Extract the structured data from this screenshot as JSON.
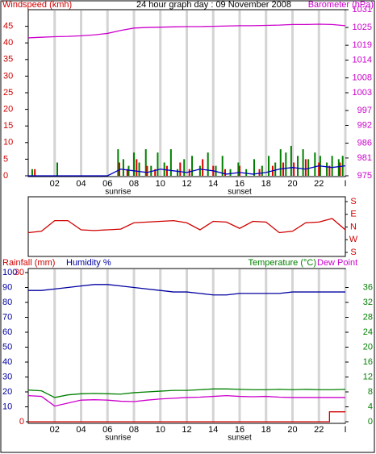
{
  "chart_data": [
    {
      "type": "bar",
      "title": "24 hour graph day : 09 November 2008",
      "ylabel": "Windspeed (kmh)",
      "y2label": "Barometer (hPa)",
      "xlim": [
        0,
        24
      ],
      "xticks": [
        {
          "value": 2,
          "label": "02"
        },
        {
          "value": 4,
          "label": "04"
        },
        {
          "value": 6,
          "label": "06"
        },
        {
          "value": 8,
          "label": "08"
        },
        10,
        12,
        14,
        16,
        18,
        20,
        22,
        {
          "value": 24,
          "label": "I"
        }
      ],
      "ylim": [
        0,
        50
      ],
      "yticks": [
        0,
        5,
        10,
        15,
        20,
        25,
        30,
        35,
        40,
        45
      ],
      "y2lim": [
        975,
        1031
      ],
      "y2ticks": [
        975,
        981,
        986,
        992,
        997,
        1003,
        1008,
        1014,
        1019,
        1025,
        1031
      ],
      "annotations": [
        {
          "text": "sunrise",
          "x": 6.8
        },
        {
          "text": "sunset",
          "x": 16
        }
      ],
      "x": [
        0,
        1,
        2,
        3,
        4,
        5,
        6,
        7,
        8,
        9,
        10,
        11,
        12,
        13,
        14,
        15,
        16,
        17,
        18,
        19,
        20,
        21,
        22,
        23,
        24
      ],
      "series": [
        {
          "type": "bar",
          "color": "#008000",
          "x": [
            0.3,
            2.2,
            6.8,
            7.2,
            7.6,
            8.0,
            8.4,
            8.9,
            9.3,
            9.8,
            10.3,
            10.8,
            11.3,
            11.8,
            12.4,
            13.0,
            13.6,
            14.2,
            14.7,
            15.3,
            15.9,
            16.5,
            17.1,
            17.7,
            18.2,
            18.7,
            19.1,
            19.5,
            19.9,
            20.4,
            20.8,
            21.2,
            21.7,
            22.1,
            22.6,
            23.0,
            23.5,
            23.8
          ],
          "values": [
            2,
            4,
            8,
            5,
            3,
            7,
            4,
            8,
            3,
            7,
            4,
            8,
            2,
            5,
            6,
            3,
            7,
            3,
            6,
            2,
            4,
            2,
            5,
            3,
            6,
            4,
            8,
            7,
            9,
            6,
            8,
            5,
            7,
            6,
            4,
            6,
            5,
            6
          ]
        },
        {
          "type": "bar",
          "color": "#e00000",
          "x": [
            0.5,
            6.9,
            7.5,
            8.2,
            9.0,
            9.6,
            10.5,
            11.5,
            12.2,
            13.2,
            14.0,
            14.9,
            16.0,
            17.5,
            18.5,
            19.3,
            20.1,
            21.0,
            22.0,
            22.8,
            23.6
          ],
          "values": [
            2,
            4,
            2,
            5,
            3,
            2,
            3,
            4,
            2,
            5,
            3,
            2,
            3,
            2,
            3,
            4,
            4,
            5,
            4,
            3,
            4
          ]
        },
        {
          "color": "#0000c0",
          "values": [
            0,
            0,
            0,
            0,
            0,
            0,
            0,
            2,
            1.5,
            1,
            2,
            1.5,
            1,
            2,
            1.5,
            0.5,
            1,
            0.5,
            1,
            2,
            2.5,
            2,
            3,
            2.5,
            3
          ]
        },
        {
          "color": "#cc00cc",
          "axis": "y2",
          "values": [
            1021.5,
            1021.7,
            1021.9,
            1022,
            1022.2,
            1022.5,
            1023,
            1024,
            1024.8,
            1025,
            1025.1,
            1025.2,
            1025.3,
            1025.3,
            1025.4,
            1025.5,
            1025.6,
            1025.6,
            1025.7,
            1025.8,
            1026,
            1026,
            1026.1,
            1026,
            1025.6
          ]
        }
      ]
    },
    {
      "type": "line",
      "xlim": [
        0,
        24
      ],
      "ylim": [
        -180,
        180
      ],
      "yticks": [
        {
          "value": 180,
          "label": "S"
        },
        {
          "value": 90,
          "label": "E"
        },
        {
          "value": 0,
          "label": "N"
        },
        {
          "value": -90,
          "label": "W"
        },
        {
          "value": -180,
          "label": "S"
        }
      ],
      "x": [
        0,
        1,
        2,
        3,
        4,
        5,
        6,
        7,
        8,
        9,
        10,
        11,
        12,
        13,
        14,
        15,
        16,
        17,
        18,
        19,
        20,
        21,
        22,
        23,
        24
      ],
      "series": [
        {
          "color": "#d00000",
          "values": [
            -40,
            -30,
            45,
            45,
            -20,
            -25,
            -20,
            -15,
            30,
            35,
            40,
            45,
            30,
            -20,
            40,
            35,
            -10,
            40,
            35,
            -40,
            -30,
            30,
            35,
            60,
            -20
          ]
        }
      ]
    },
    {
      "type": "line",
      "xlim": [
        0,
        24
      ],
      "xticks": [
        {
          "value": 2,
          "label": "02"
        },
        {
          "value": 4,
          "label": "04"
        },
        {
          "value": 6,
          "label": "06"
        },
        {
          "value": 8,
          "label": "08"
        },
        10,
        12,
        14,
        16,
        18,
        20,
        22,
        {
          "value": 24,
          "label": "I"
        }
      ],
      "ylim": [
        0,
        100
      ],
      "yticks": [
        10,
        20,
        30,
        40,
        50,
        60,
        70,
        80,
        90,
        100
      ],
      "y2lim": [
        0,
        40
      ],
      "y2ticks": [
        0,
        4,
        8,
        12,
        16,
        20,
        24,
        28,
        32,
        36
      ],
      "y3lim": [
        0,
        30
      ],
      "y3ticks": [
        0,
        30
      ],
      "annotations": [
        {
          "text": "sunrise",
          "x": 6.8
        },
        {
          "text": "sunset",
          "x": 16
        }
      ],
      "x": [
        0,
        1,
        2,
        3,
        4,
        5,
        6,
        7,
        8,
        9,
        10,
        11,
        12,
        13,
        14,
        15,
        16,
        17,
        18,
        19,
        20,
        21,
        22,
        23,
        24
      ],
      "series": [
        {
          "name": "Rainfall (mm)",
          "color": "#d00000",
          "axis": "y3",
          "x": [
            0,
            22.8,
            22.8,
            24
          ],
          "values": [
            0,
            0,
            2,
            2
          ]
        },
        {
          "name": "Humidity %",
          "color": "#0000a0",
          "values": [
            88,
            88,
            89,
            90,
            91,
            92,
            92,
            91,
            90,
            89,
            88,
            87,
            87,
            86,
            85,
            85,
            86,
            86,
            86,
            86,
            87,
            87,
            87,
            87,
            87
          ]
        },
        {
          "name": "Temperature (°C)",
          "color": "#008000",
          "axis": "y2",
          "values": [
            8.5,
            8.3,
            6.5,
            7.2,
            7.5,
            7.6,
            7.5,
            7.4,
            7.8,
            8.0,
            8.2,
            8.4,
            8.4,
            8.6,
            8.8,
            8.8,
            8.7,
            8.6,
            8.6,
            8.7,
            8.6,
            8.7,
            8.6,
            8.6,
            8.7
          ]
        },
        {
          "name": "Dew Point",
          "color": "#cc00cc",
          "axis": "y2",
          "values": [
            7.0,
            6.8,
            4.2,
            5.0,
            5.8,
            5.9,
            5.8,
            5.5,
            5.4,
            5.8,
            6.1,
            6.3,
            6.5,
            6.6,
            6.8,
            7.0,
            6.8,
            6.7,
            6.8,
            6.6,
            6.5,
            6.5,
            6.5,
            6.5,
            6.5
          ]
        }
      ]
    }
  ]
}
